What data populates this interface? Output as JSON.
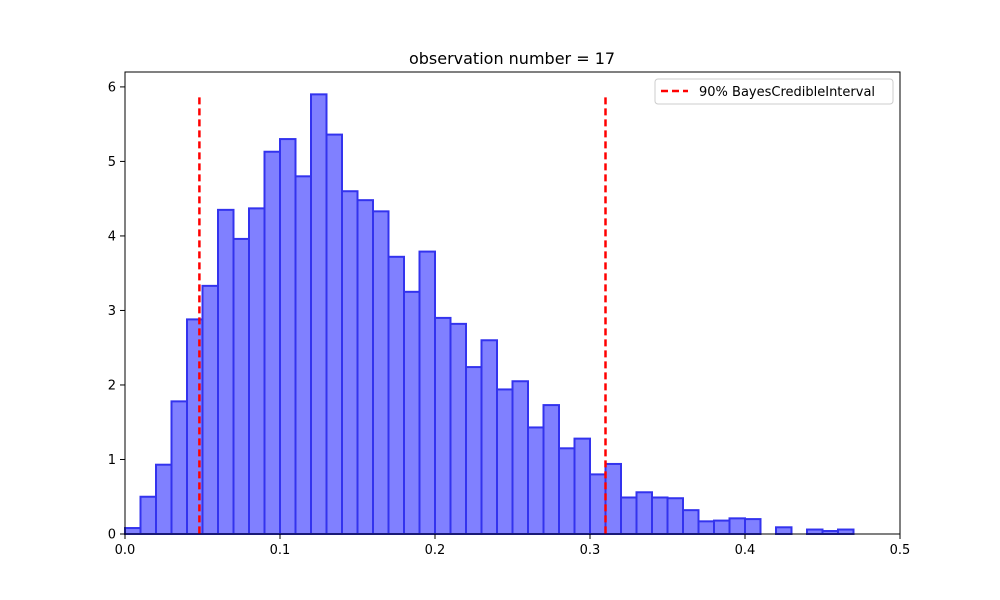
{
  "chart_data": {
    "type": "bar",
    "title": "observation number = 17",
    "xlabel": "",
    "ylabel": "",
    "xlim": [
      0.0,
      0.5
    ],
    "ylim": [
      0,
      6.2
    ],
    "x_ticks": [
      "0.0",
      "0.1",
      "0.2",
      "0.3",
      "0.4",
      "0.5"
    ],
    "y_ticks": [
      "0",
      "1",
      "2",
      "3",
      "4",
      "5",
      "6"
    ],
    "grid": false,
    "legend_position": "top-right",
    "bar_fill_color": "#8080ff",
    "bar_edge_color": "#3333ee",
    "bins": {
      "start": 0.0,
      "width": 0.01,
      "values": [
        0.08,
        0.5,
        0.93,
        1.78,
        2.88,
        3.33,
        4.35,
        3.96,
        4.37,
        5.13,
        5.3,
        4.8,
        5.9,
        5.36,
        4.6,
        4.48,
        4.33,
        3.72,
        3.25,
        3.79,
        2.9,
        2.82,
        2.24,
        2.6,
        1.94,
        2.05,
        1.43,
        1.73,
        1.15,
        1.28,
        0.8,
        0.94,
        0.49,
        0.56,
        0.49,
        0.48,
        0.32,
        0.17,
        0.18,
        0.21,
        0.2,
        0.0,
        0.09,
        0.0,
        0.06,
        0.04,
        0.06
      ]
    },
    "credible_interval": {
      "label": "90% BayesCredibleInterval",
      "color": "#ff0000",
      "lower": 0.048,
      "upper": 0.31,
      "line_top": 5.86
    }
  }
}
